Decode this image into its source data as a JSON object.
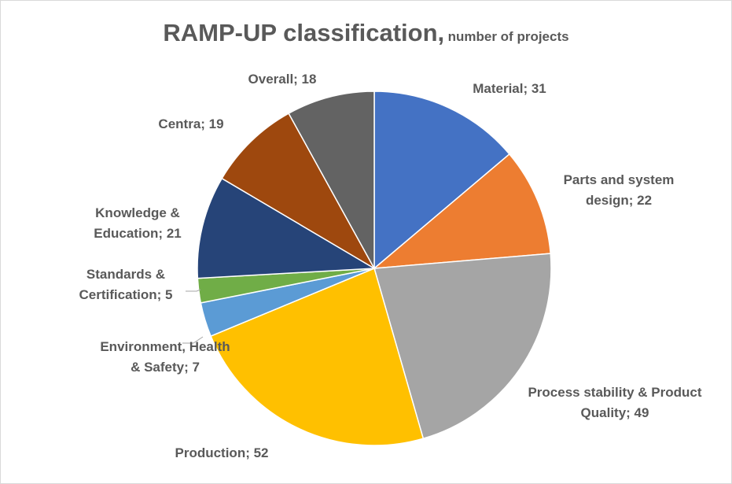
{
  "chart_data": {
    "type": "pie",
    "title": "RAMP-UP classification,",
    "subtitle": "number of projects",
    "labels": [
      "Material; 31",
      "Parts and system design; 22",
      "Process stability & Product Quality; 49",
      "Production; 52",
      "Environment, Health & Safety; 7",
      "Standards & Certification; 5",
      "Knowledge & Education; 21",
      "Centra; 19",
      "Overall; 18"
    ],
    "values": [
      31,
      22,
      49,
      52,
      7,
      5,
      21,
      19,
      18
    ],
    "colors": [
      "#4472c4",
      "#ed7d31",
      "#a5a5a5",
      "#ffc000",
      "#5b9bd5",
      "#70ad47",
      "#264478",
      "#9e480e",
      "#636363"
    ]
  }
}
